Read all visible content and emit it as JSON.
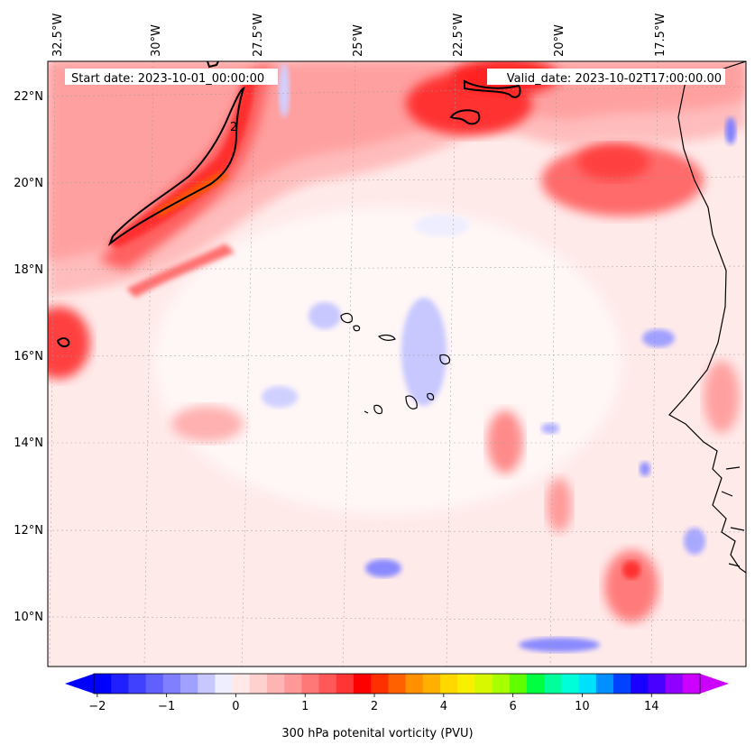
{
  "header": {
    "start_date": "Start date: 2023-10-01_00:00:00",
    "valid_date": "Valid_date: 2023-10-02T17:00:00.00"
  },
  "map": {
    "lon_labels": [
      "32.5°W",
      "30°W",
      "27.5°W",
      "25°W",
      "22.5°W",
      "20°W",
      "17.5°W"
    ],
    "lat_labels": [
      "22°N",
      "20°N",
      "18°N",
      "16°N",
      "14°N",
      "12°N",
      "10°N"
    ],
    "contour_label": "2"
  },
  "colorbar": {
    "title": "300 hPa potenital vorticity (PVU)",
    "tick_labels": [
      "−2",
      "−1",
      "0",
      "1",
      "2",
      "4",
      "6",
      "10",
      "14"
    ],
    "colors": [
      "#0000ff",
      "#2020ff",
      "#4040ff",
      "#6060ff",
      "#8080ff",
      "#a0a0ff",
      "#c8c8ff",
      "#eeeeff",
      "#ffe8e8",
      "#ffd0d0",
      "#ffb4b4",
      "#ff9898",
      "#ff7878",
      "#ff5858",
      "#ff3434",
      "#ff0000",
      "#ff3000",
      "#ff6000",
      "#ff9000",
      "#ffb000",
      "#ffd800",
      "#f8f000",
      "#d8f800",
      "#a8ff00",
      "#60ff00",
      "#00ff40",
      "#00ff9a",
      "#00ffd8",
      "#00e0ff",
      "#0090ff",
      "#0040ff",
      "#1800ff",
      "#4800ff",
      "#9000ff",
      "#cc00ff"
    ],
    "extend_min_color": "#0000ff",
    "extend_max_color": "#cc00ff"
  },
  "colors": {
    "background_field": "#ffe8e8",
    "high_pv": "#ff3434",
    "contour": "#000000"
  }
}
